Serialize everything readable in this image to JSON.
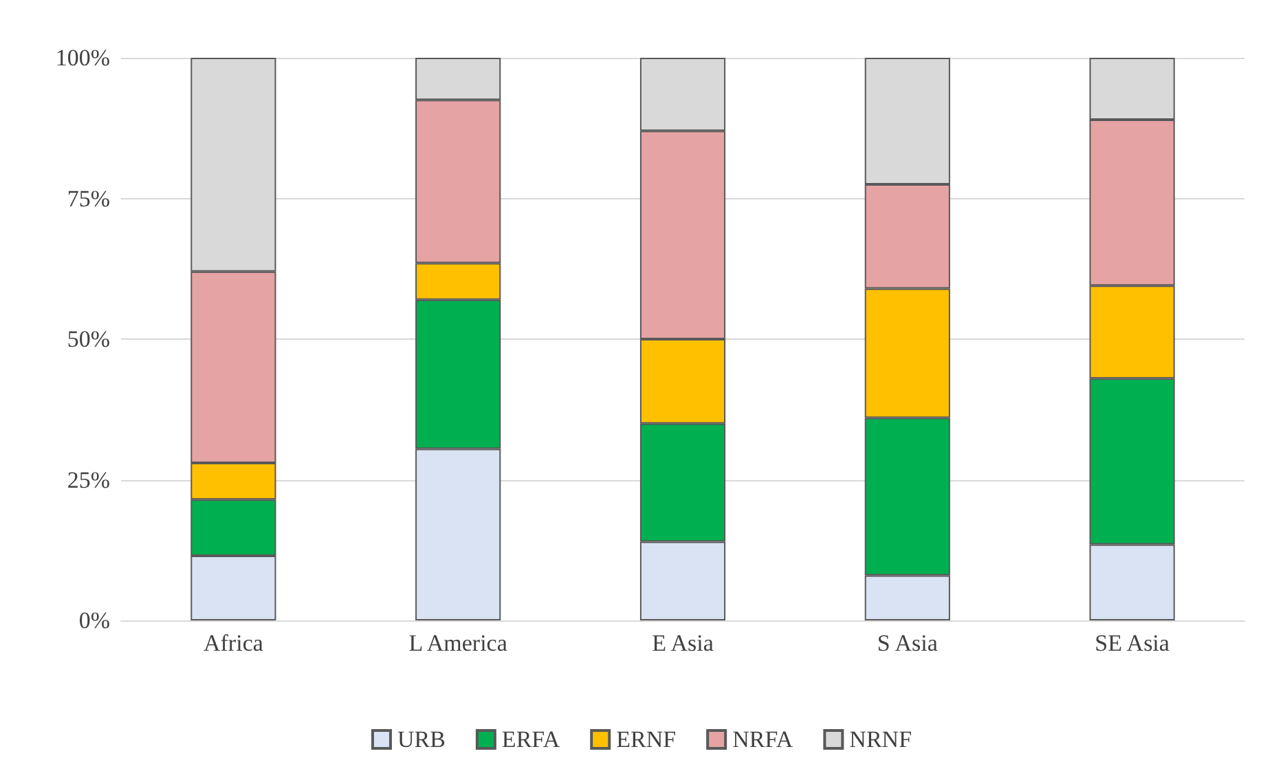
{
  "chart_data": {
    "type": "bar",
    "stacked": true,
    "categories": [
      "Africa",
      "L America",
      "E Asia",
      "S Asia",
      "SE Asia"
    ],
    "series": [
      {
        "name": "URB",
        "color": "#dae3f3",
        "values": [
          11.5,
          30.5,
          14,
          8,
          13.5
        ]
      },
      {
        "name": "ERFA",
        "color": "#00b050",
        "values": [
          10,
          26.5,
          21,
          28,
          29.5
        ]
      },
      {
        "name": "ERNF",
        "color": "#ffc000",
        "values": [
          6.5,
          6.5,
          15,
          23,
          16.5
        ]
      },
      {
        "name": "NRFA",
        "color": "#e6a3a3",
        "values": [
          34,
          29,
          37,
          18.5,
          29.5
        ]
      },
      {
        "name": "NRNF",
        "color": "#d9d9d9",
        "values": [
          38,
          7.5,
          13,
          22.5,
          11
        ]
      }
    ],
    "ylim": [
      0,
      100
    ],
    "yticks": [
      {
        "value": 0,
        "label": "0%"
      },
      {
        "value": 25,
        "label": "25%"
      },
      {
        "value": 50,
        "label": "50%"
      },
      {
        "value": 75,
        "label": "75%"
      },
      {
        "value": 100,
        "label": "100%"
      }
    ],
    "grid": "y",
    "legend": "bottom"
  }
}
